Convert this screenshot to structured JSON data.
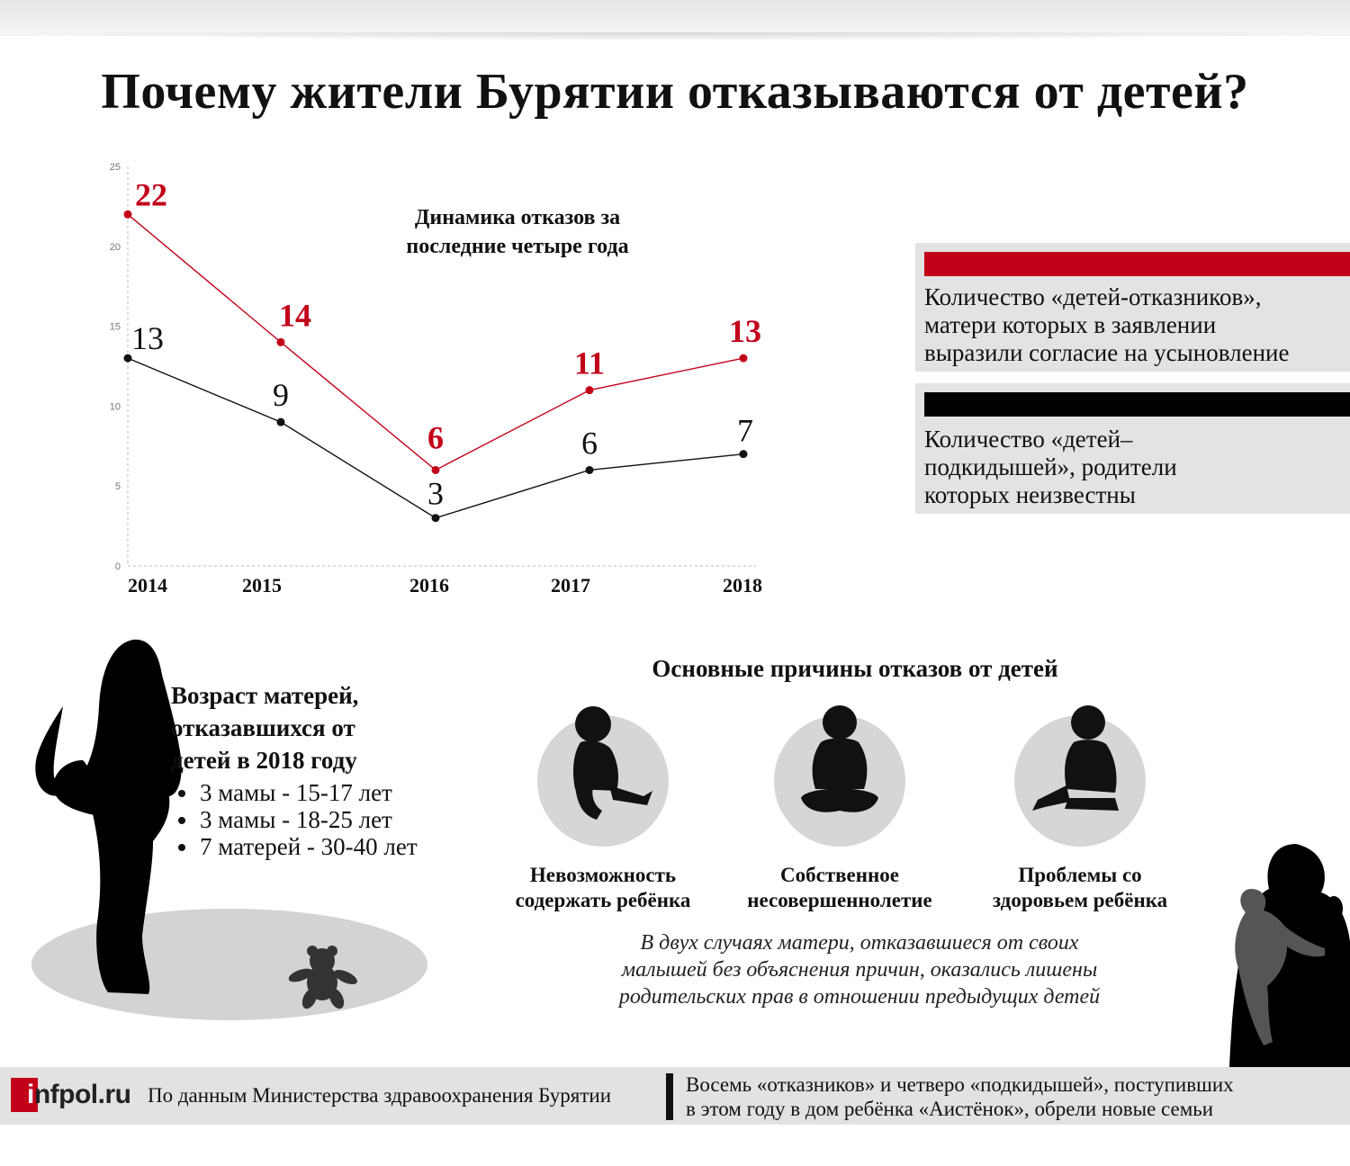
{
  "header": {
    "title": "Почему жители Бурятии отказываются от детей?"
  },
  "chart_title_lines": [
    "Динамика отказов за",
    "последние четыре года"
  ],
  "chart_data": {
    "type": "line",
    "categories": [
      "2014",
      "2015",
      "2016",
      "2017",
      "2018"
    ],
    "series": [
      {
        "key": "refusals",
        "values": [
          22,
          14,
          6,
          11,
          13
        ],
        "color": "#c3001a"
      },
      {
        "key": "foundlings",
        "values": [
          13,
          9,
          3,
          6,
          7
        ],
        "color": "#111111"
      }
    ],
    "ylim": [
      0,
      25
    ],
    "yticks": [
      0,
      5,
      10,
      15,
      20,
      25
    ],
    "grid": false
  },
  "legend": [
    {
      "color": "#c3001a",
      "lines": [
        "Количество «детей-отказников»,",
        "матери которых в заявлении",
        "выразили согласие на усыновление"
      ]
    },
    {
      "color": "#000000",
      "lines": [
        "Количество «детей–",
        "подкидышей», родители",
        "которых неизвестны"
      ]
    }
  ],
  "mothers": {
    "title_lines": [
      "Возраст матерей,",
      "отказавшихся от",
      "детей в 2018 году"
    ],
    "items": [
      "3 мамы - 15-17 лет",
      "3 мамы - 18-25 лет",
      "7 матерей - 30-40 лет"
    ]
  },
  "reasons": {
    "title": "Основные причины отказов от детей",
    "items": [
      {
        "lines": [
          "Невозможность",
          "содержать ребёнка"
        ],
        "icon": "sitting-baby-icon"
      },
      {
        "lines": [
          "Собственное",
          "несовершеннолетие"
        ],
        "icon": "cross-legged-child-icon"
      },
      {
        "lines": [
          "Проблемы со",
          "здоровьем ребёнка"
        ],
        "icon": "seated-child-icon"
      }
    ]
  },
  "note_lines": [
    "В двух случаях матери, отказавшиеся от своих",
    "малышей без объяснения причин, оказались лишены",
    "родительских прав в отношении предыдущих детей"
  ],
  "footer": {
    "logo_i": "i",
    "logo_rest": "nfpol.ru",
    "source": "По данным Министерства здравоохранения Бурятии",
    "note_lines": [
      "Восемь «отказников» и четверо «подкидышей», поступивших",
      "в этом году в дом ребёнка «Аистёнок», обрели новые семьи"
    ]
  }
}
